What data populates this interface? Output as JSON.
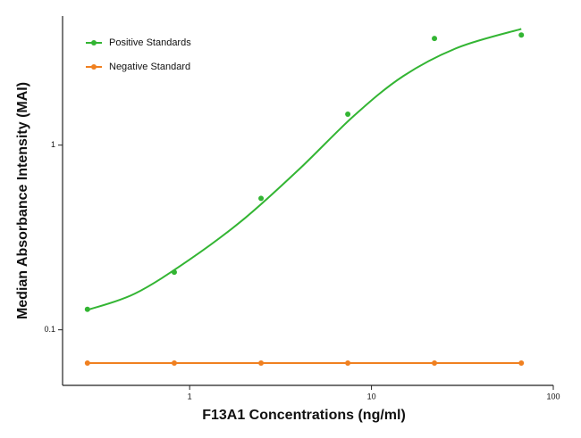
{
  "chart_data": {
    "type": "scatter",
    "x_label": "F13A1 Concentrations (ng/ml)",
    "y_label": "Median Absorbance Intensity (MAI)",
    "log_x": true,
    "log_y": true,
    "xlim": [
      0.2,
      100
    ],
    "ylim": [
      0.05,
      5
    ],
    "xticks": [
      1,
      10,
      100
    ],
    "yticks": [
      0.1,
      1
    ],
    "legend": "upper-left",
    "series": [
      {
        "name": "Positive Standards",
        "color": "#33b533",
        "x": [
          0.274,
          0.823,
          2.47,
          7.41,
          22.2,
          66.7
        ],
        "values": [
          0.129,
          0.205,
          0.515,
          1.47,
          3.78,
          3.95
        ],
        "fit": {
          "x": [
            0.274,
            0.5,
            1,
            2,
            4,
            8,
            15,
            30,
            66.7
          ],
          "values": [
            0.128,
            0.157,
            0.24,
            0.4,
            0.74,
            1.44,
            2.37,
            3.38,
            4.26
          ]
        }
      },
      {
        "name": "Negative Standard",
        "color": "#f08020",
        "x": [
          0.274,
          0.823,
          2.47,
          7.41,
          22.2,
          66.7
        ],
        "values": [
          0.066,
          0.066,
          0.066,
          0.066,
          0.066,
          0.066
        ]
      }
    ]
  }
}
